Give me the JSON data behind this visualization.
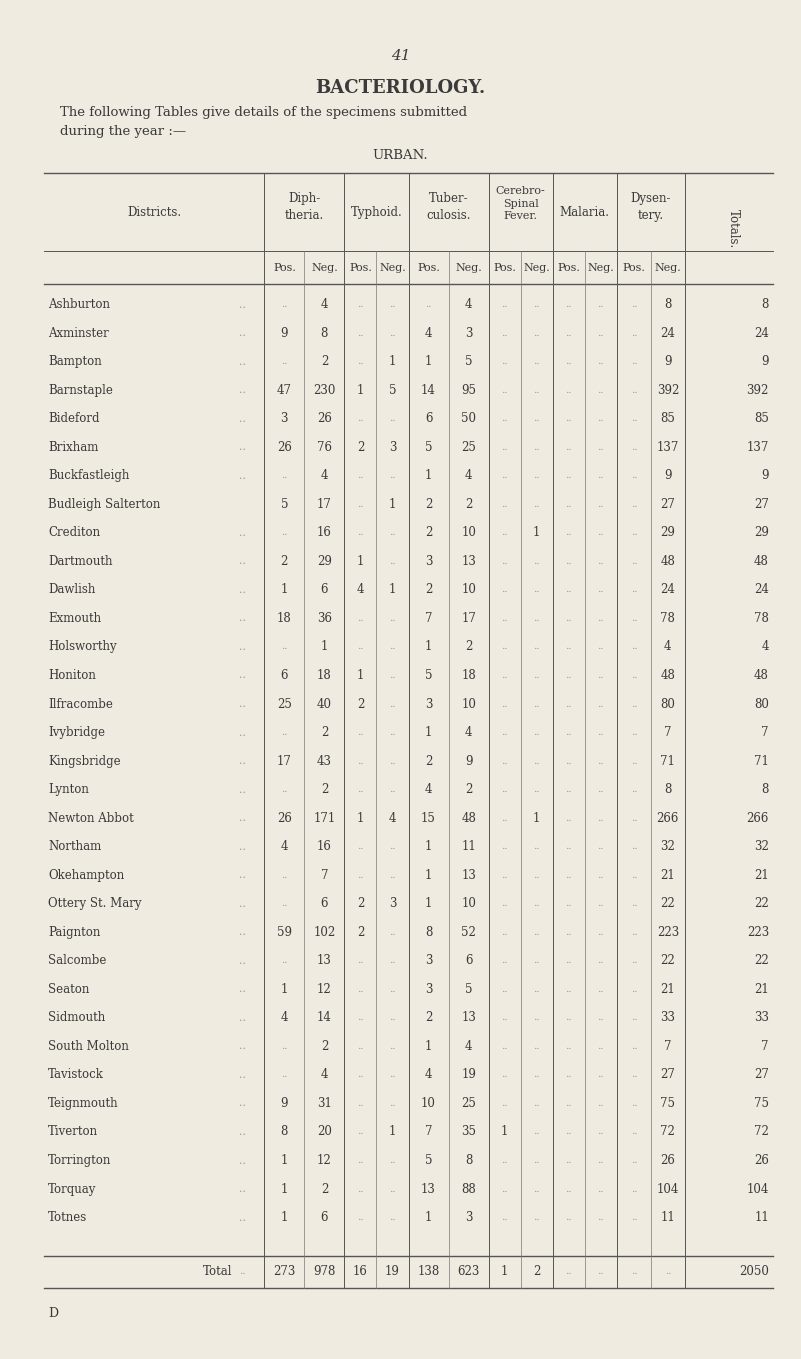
{
  "page_number": "41",
  "title": "BACTERIOLOGY.",
  "subtitle1": "The following Tables give details of the specimens submitted",
  "subtitle2": "during the year :—",
  "section": "URBAN.",
  "bg_color": "#f0ebe0",
  "text_color": "#3a3a3a",
  "light_color": "#999999",
  "rows": [
    [
      "Ashburton",
      "..",
      "..",
      "4",
      "..",
      "..",
      "..",
      "4",
      "..",
      "..",
      "..",
      "..",
      "..",
      "8"
    ],
    [
      "Axminster",
      "..",
      "9",
      "8",
      "..",
      "..",
      "4",
      "3",
      "..",
      "..",
      "..",
      "..",
      "..",
      "24"
    ],
    [
      "Bampton",
      "..",
      "..",
      "2",
      "..",
      "1",
      "1",
      "5",
      "..",
      "..",
      "..",
      "..",
      "..",
      "9"
    ],
    [
      "Barnstaple",
      "..",
      "47",
      "230",
      "1",
      "5",
      "14",
      "95",
      "..",
      "..",
      "..",
      "..",
      "..",
      "392"
    ],
    [
      "Bideford",
      "..",
      "3",
      "26",
      "..",
      "..",
      "6",
      "50",
      "..",
      "..",
      "..",
      "..",
      "..",
      "85"
    ],
    [
      "Brixham",
      "..",
      "26",
      "76",
      "2",
      "3",
      "5",
      "25",
      "..",
      "..",
      "..",
      "..",
      "..",
      "137"
    ],
    [
      "Buckfastleigh",
      "..",
      "..",
      "4",
      "..",
      "..",
      "1",
      "4",
      "..",
      "..",
      "..",
      "..",
      "..",
      "9"
    ],
    [
      "Budleigh Salterton",
      "",
      "5",
      "17",
      "..",
      "1",
      "2",
      "2",
      "..",
      "..",
      "..",
      "..",
      "..",
      "27"
    ],
    [
      "Crediton",
      "..",
      "..",
      "16",
      "..",
      "..",
      "2",
      "10",
      "..",
      "1",
      "..",
      "..",
      "..",
      "29"
    ],
    [
      "Dartmouth",
      "..",
      "2",
      "29",
      "1",
      "..",
      "3",
      "13",
      "..",
      "..",
      "..",
      "..",
      "..",
      "48"
    ],
    [
      "Dawlish",
      "..",
      "1",
      "6",
      "4",
      "1",
      "2",
      "10",
      "..",
      "..",
      "..",
      "..",
      "..",
      "24"
    ],
    [
      "Exmouth",
      "..",
      "18",
      "36",
      "..",
      "..",
      "7",
      "17",
      "..",
      "..",
      "..",
      "..",
      "..",
      "78"
    ],
    [
      "Holsworthy",
      "..",
      "..",
      "1",
      "..",
      "..",
      "1",
      "2",
      "..",
      "..",
      "..",
      "..",
      "..",
      "4"
    ],
    [
      "Honiton",
      "..",
      "6",
      "18",
      "1",
      "..",
      "5",
      "18",
      "..",
      "..",
      "..",
      "..",
      "..",
      "48"
    ],
    [
      "Ilfracombe",
      "..",
      "25",
      "40",
      "2",
      "..",
      "3",
      "10",
      "..",
      "..",
      "..",
      "..",
      "..",
      "80"
    ],
    [
      "Ivybridge",
      "..",
      "..",
      "2",
      "..",
      "..",
      "1",
      "4",
      "..",
      "..",
      "..",
      "..",
      "..",
      "7"
    ],
    [
      "Kingsbridge",
      "..",
      "17",
      "43",
      "..",
      "..",
      "2",
      "9",
      "..",
      "..",
      "..",
      "..",
      "..",
      "71"
    ],
    [
      "Lynton",
      "..",
      "..",
      "2",
      "..",
      "..",
      "4",
      "2",
      "..",
      "..",
      "..",
      "..",
      "..",
      "8"
    ],
    [
      "Newton Abbot",
      "..",
      "26",
      "171",
      "1",
      "4",
      "15",
      "48",
      "..",
      "1",
      "..",
      "..",
      "..",
      "266"
    ],
    [
      "Northam",
      "..",
      "4",
      "16",
      "..",
      "..",
      "1",
      "11",
      "..",
      "..",
      "..",
      "..",
      "..",
      "32"
    ],
    [
      "Okehampton",
      "..",
      "..",
      "7",
      "..",
      "..",
      "1",
      "13",
      "..",
      "..",
      "..",
      "..",
      "..",
      "21"
    ],
    [
      "Ottery St. Mary",
      "..",
      "..",
      "6",
      "2",
      "3",
      "1",
      "10",
      "..",
      "..",
      "..",
      "..",
      "..",
      "22"
    ],
    [
      "Paignton",
      "..",
      "59",
      "102",
      "2",
      "..",
      "8",
      "52",
      "..",
      "..",
      "..",
      "..",
      "..",
      "223"
    ],
    [
      "Salcombe",
      "..",
      "..",
      "13",
      "..",
      "..",
      "3",
      "6",
      "..",
      "..",
      "..",
      "..",
      "..",
      "22"
    ],
    [
      "Seaton",
      "..",
      "1",
      "12",
      "..",
      "..",
      "3",
      "5",
      "..",
      "..",
      "..",
      "..",
      "..",
      "21"
    ],
    [
      "Sidmouth",
      "..",
      "4",
      "14",
      "..",
      "..",
      "2",
      "13",
      "..",
      "..",
      "..",
      "..",
      "..",
      "33"
    ],
    [
      "South Molton",
      "..",
      "..",
      "2",
      "..",
      "..",
      "1",
      "4",
      "..",
      "..",
      "..",
      "..",
      "..",
      "7"
    ],
    [
      "Tavistock",
      "..",
      "..",
      "4",
      "..",
      "..",
      "4",
      "19",
      "..",
      "..",
      "..",
      "..",
      "..",
      "27"
    ],
    [
      "Teignmouth",
      "..",
      "9",
      "31",
      "..",
      "..",
      "10",
      "25",
      "..",
      "..",
      "..",
      "..",
      "..",
      "75"
    ],
    [
      "Tiverton",
      "..",
      "8",
      "20",
      "..",
      "1",
      "7",
      "35",
      "1",
      "..",
      "..",
      "..",
      "..",
      "72"
    ],
    [
      "Torrington",
      "..",
      "1",
      "12",
      "..",
      "..",
      "5",
      "8",
      "..",
      "..",
      "..",
      "..",
      "..",
      "26"
    ],
    [
      "Torquay",
      "..",
      "1",
      "2",
      "..",
      "..",
      "13",
      "88",
      "..",
      "..",
      "..",
      "..",
      "..",
      "104"
    ],
    [
      "Totnes",
      "..",
      "1",
      "6",
      "..",
      "..",
      "1",
      "3",
      "..",
      "..",
      "..",
      "..",
      "..",
      "11"
    ]
  ],
  "total_vals": [
    "..",
    "273",
    "978",
    "16",
    "19",
    "138",
    "623",
    "1",
    "2",
    "..",
    "..",
    "..",
    "..",
    "2050"
  ],
  "footer": "D"
}
